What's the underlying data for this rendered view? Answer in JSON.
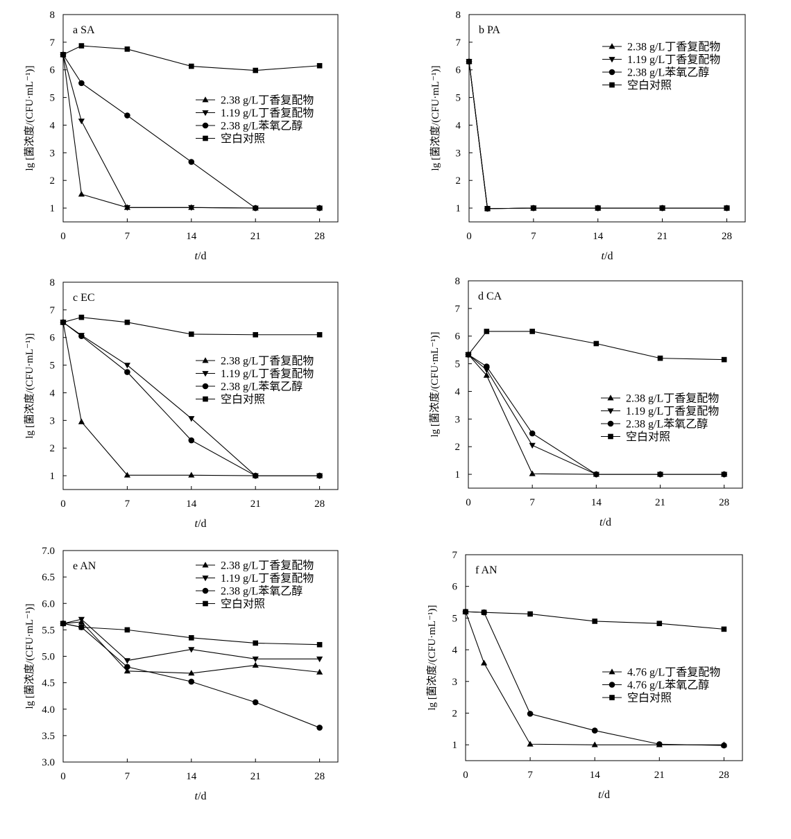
{
  "chart_data": [
    {
      "type": "line",
      "panel_label": "a  SA",
      "xlabel_italic": "t",
      "xlabel_unit": "/d",
      "ylabel": "lg [菌浓度/(CFU·mL⁻¹)]",
      "x": [
        0,
        2,
        7,
        14,
        21,
        28
      ],
      "xticks": [
        "0",
        "7",
        "14",
        "21",
        "28"
      ],
      "xlim": [
        0,
        30
      ],
      "ylim": [
        0.5,
        8
      ],
      "yticks": [
        "1",
        "2",
        "3",
        "4",
        "5",
        "6",
        "7",
        "8"
      ],
      "legend_position": "middle-right",
      "series": [
        {
          "name": "2.38 g/L丁香复配物",
          "marker": "triangle-up",
          "values": [
            6.55,
            1.5,
            1.02,
            1.02,
            1.0,
            1.0
          ]
        },
        {
          "name": "1.19 g/L丁香复配物",
          "marker": "triangle-down",
          "values": [
            6.55,
            4.15,
            1.02,
            1.02,
            1.0,
            1.0
          ]
        },
        {
          "name": "2.38 g/L苯氧乙醇",
          "marker": "circle",
          "values": [
            6.55,
            5.52,
            4.35,
            2.67,
            1.0,
            1.0
          ]
        },
        {
          "name": "空白对照",
          "marker": "square",
          "values": [
            6.55,
            6.87,
            6.75,
            6.13,
            5.98,
            6.15
          ]
        }
      ]
    },
    {
      "type": "line",
      "panel_label": "b  PA",
      "xlabel_italic": "t",
      "xlabel_unit": "/d",
      "ylabel": "lg [菌浓度/(CFU·mL⁻¹)]",
      "x": [
        0,
        2,
        7,
        14,
        21,
        28
      ],
      "xticks": [
        "0",
        "7",
        "14",
        "21",
        "28"
      ],
      "xlim": [
        0,
        30
      ],
      "ylim": [
        0.5,
        8
      ],
      "yticks": [
        "1",
        "2",
        "3",
        "4",
        "5",
        "6",
        "7",
        "8"
      ],
      "legend_position": "top-right",
      "series": [
        {
          "name": "2.38 g/L丁香复配物",
          "marker": "triangle-up",
          "values": [
            6.3,
            0.98,
            1.0,
            1.0,
            1.0,
            1.0
          ]
        },
        {
          "name": "1.19 g/L丁香复配物",
          "marker": "triangle-down",
          "values": [
            6.3,
            0.98,
            1.0,
            1.0,
            1.0,
            1.0
          ]
        },
        {
          "name": "2.38 g/L苯氧乙醇",
          "marker": "circle",
          "values": [
            6.3,
            0.98,
            1.0,
            1.0,
            1.0,
            1.0
          ]
        },
        {
          "name": "空白对照",
          "marker": "square",
          "values": [
            6.3,
            0.98,
            1.0,
            1.0,
            1.0,
            1.0
          ]
        }
      ]
    },
    {
      "type": "line",
      "panel_label": "c  EC",
      "xlabel_italic": "t",
      "xlabel_unit": "/d",
      "ylabel": "lg [菌浓度/(CFU·mL⁻¹)]",
      "x": [
        0,
        2,
        7,
        14,
        21,
        28
      ],
      "xticks": [
        "0",
        "7",
        "14",
        "21",
        "28"
      ],
      "xlim": [
        0,
        30
      ],
      "ylim": [
        0.5,
        8
      ],
      "yticks": [
        "1",
        "2",
        "3",
        "4",
        "5",
        "6",
        "7",
        "8"
      ],
      "legend_position": "middle-right",
      "series": [
        {
          "name": "2.38 g/L丁香复配物",
          "marker": "triangle-up",
          "values": [
            6.55,
            2.95,
            1.02,
            1.02,
            1.0,
            1.0
          ]
        },
        {
          "name": "1.19 g/L丁香复配物",
          "marker": "triangle-down",
          "values": [
            6.55,
            6.08,
            5.0,
            3.07,
            1.0,
            1.0
          ]
        },
        {
          "name": "2.38 g/L苯氧乙醇",
          "marker": "circle",
          "values": [
            6.55,
            6.05,
            4.75,
            2.28,
            1.0,
            1.0
          ]
        },
        {
          "name": "空白对照",
          "marker": "square",
          "values": [
            6.55,
            6.73,
            6.55,
            6.12,
            6.1,
            6.1
          ]
        }
      ]
    },
    {
      "type": "line",
      "panel_label": "d  CA",
      "xlabel_italic": "t",
      "xlabel_unit": "/d",
      "ylabel": "lg [菌浓度/(CFU·mL⁻¹)]",
      "x": [
        0,
        2,
        7,
        14,
        21,
        28
      ],
      "xticks": [
        "0",
        "7",
        "14",
        "21",
        "28"
      ],
      "xlim": [
        0,
        30
      ],
      "ylim": [
        0.5,
        8
      ],
      "yticks": [
        "1",
        "2",
        "3",
        "4",
        "5",
        "6",
        "7",
        "8"
      ],
      "legend_position": "lower-right",
      "series": [
        {
          "name": "2.38 g/L丁香复配物",
          "marker": "triangle-up",
          "values": [
            5.33,
            4.58,
            1.02,
            1.0,
            1.0,
            1.0
          ]
        },
        {
          "name": "1.19 g/L丁香复配物",
          "marker": "triangle-down",
          "values": [
            5.33,
            4.78,
            2.05,
            1.0,
            1.0,
            1.0
          ]
        },
        {
          "name": "2.38 g/L苯氧乙醇",
          "marker": "circle",
          "values": [
            5.33,
            4.9,
            2.48,
            1.0,
            1.0,
            1.0
          ]
        },
        {
          "name": "空白对照",
          "marker": "square",
          "values": [
            5.33,
            6.17,
            6.17,
            5.73,
            5.2,
            5.15
          ]
        }
      ]
    },
    {
      "type": "line",
      "panel_label": "e  AN",
      "xlabel_italic": "t",
      "xlabel_unit": "/d",
      "ylabel": "lg [菌浓度/(CFU·mL⁻¹)]",
      "x": [
        0,
        2,
        7,
        14,
        21,
        28
      ],
      "xticks": [
        "0",
        "7",
        "14",
        "21",
        "28"
      ],
      "xlim": [
        0,
        30
      ],
      "ylim": [
        3.0,
        7.0
      ],
      "yticks": [
        "3.0",
        "3.5",
        "4.0",
        "4.5",
        "5.0",
        "5.5",
        "6.0",
        "6.5",
        "7.0"
      ],
      "legend_position": "top-right",
      "series": [
        {
          "name": "2.38 g/L丁香复配物",
          "marker": "triangle-up",
          "values": [
            5.62,
            5.65,
            4.72,
            4.68,
            4.83,
            4.7
          ]
        },
        {
          "name": "1.19 g/L丁香复配物",
          "marker": "triangle-down",
          "values": [
            5.62,
            5.7,
            4.92,
            5.13,
            4.95,
            4.95
          ]
        },
        {
          "name": "2.38 g/L苯氧乙醇",
          "marker": "circle",
          "values": [
            5.62,
            5.55,
            4.8,
            4.52,
            4.13,
            3.65
          ]
        },
        {
          "name": "空白对照",
          "marker": "square",
          "values": [
            5.62,
            5.55,
            5.5,
            5.35,
            5.25,
            5.22
          ]
        }
      ]
    },
    {
      "type": "line",
      "panel_label": "f  AN",
      "xlabel_italic": "t",
      "xlabel_unit": "/d",
      "ylabel": "lg [菌浓度/(CFU·mL⁻¹)]",
      "x": [
        0,
        2,
        7,
        14,
        21,
        28
      ],
      "xticks": [
        "0",
        "7",
        "14",
        "21",
        "28"
      ],
      "xlim": [
        0,
        30
      ],
      "ylim": [
        0.5,
        7
      ],
      "yticks": [
        "1",
        "2",
        "3",
        "4",
        "5",
        "6",
        "7"
      ],
      "legend_position": "lower-right",
      "series": [
        {
          "name": "4.76 g/L丁香复配物",
          "marker": "triangle-up",
          "values": [
            5.2,
            3.58,
            1.02,
            1.0,
            1.0,
            1.0
          ]
        },
        {
          "name": "4.76 g/L苯氧乙醇",
          "marker": "circle",
          "values": [
            5.2,
            5.18,
            1.98,
            1.45,
            1.02,
            0.98
          ]
        },
        {
          "name": "空白对照",
          "marker": "square",
          "values": [
            5.2,
            5.18,
            5.13,
            4.9,
            4.83,
            4.65
          ]
        }
      ]
    }
  ]
}
